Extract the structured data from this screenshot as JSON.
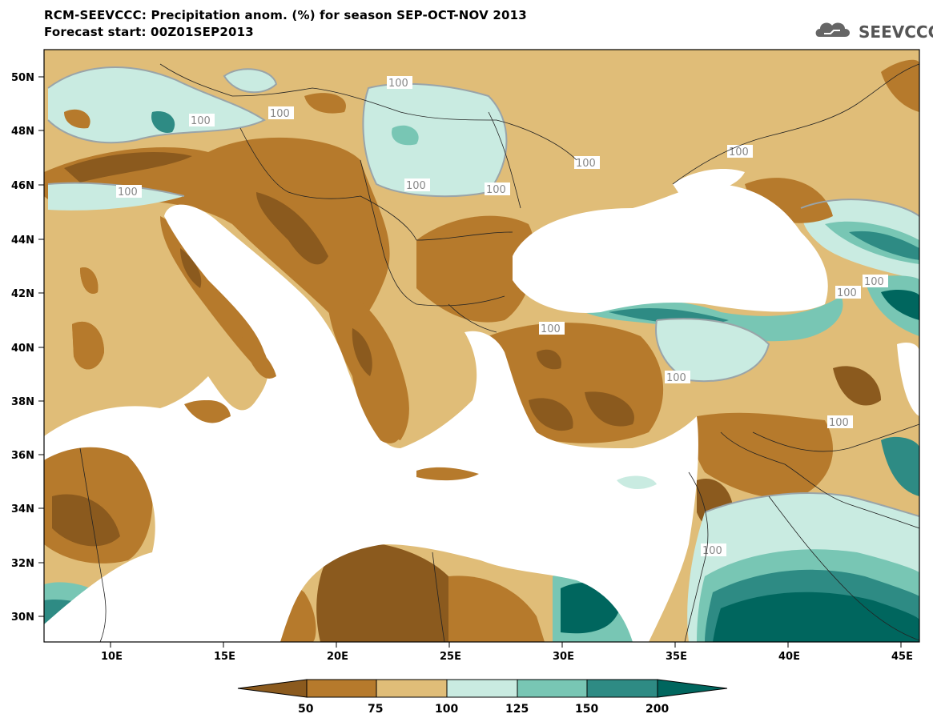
{
  "header": {
    "title": "RCM-SEEVCCC: Precipitation anom. (%) for season SEP-OCT-NOV 2013",
    "subtitle": "Forecast start: 00Z01SEP2013",
    "logo_text": "SEEVCCC"
  },
  "map": {
    "lat_labels": [
      "50N",
      "48N",
      "46N",
      "44N",
      "42N",
      "40N",
      "38N",
      "36N",
      "34N",
      "32N",
      "30N"
    ],
    "lon_labels": [
      "10E",
      "15E",
      "20E",
      "25E",
      "30E",
      "35E",
      "40E",
      "45E"
    ],
    "contour_label": "100"
  },
  "legend": {
    "tick_labels": [
      "50",
      "75",
      "100",
      "125",
      "150",
      "200"
    ],
    "colors": [
      "#8b5a1e",
      "#b67a2c",
      "#e0bd78",
      "#c9ebe1",
      "#78c6b4",
      "#2e8b84",
      "#00665e"
    ]
  },
  "colors": {
    "land_base": "#e0bd78",
    "dry": "#b67a2c",
    "very_dry": "#8b5a1e",
    "wet": "#c9ebe1",
    "wetter": "#78c6b4",
    "very_wet": "#2e8b84",
    "extreme_wet": "#00665e",
    "sea": "#ffffff",
    "contour": "#9aa4a8"
  }
}
